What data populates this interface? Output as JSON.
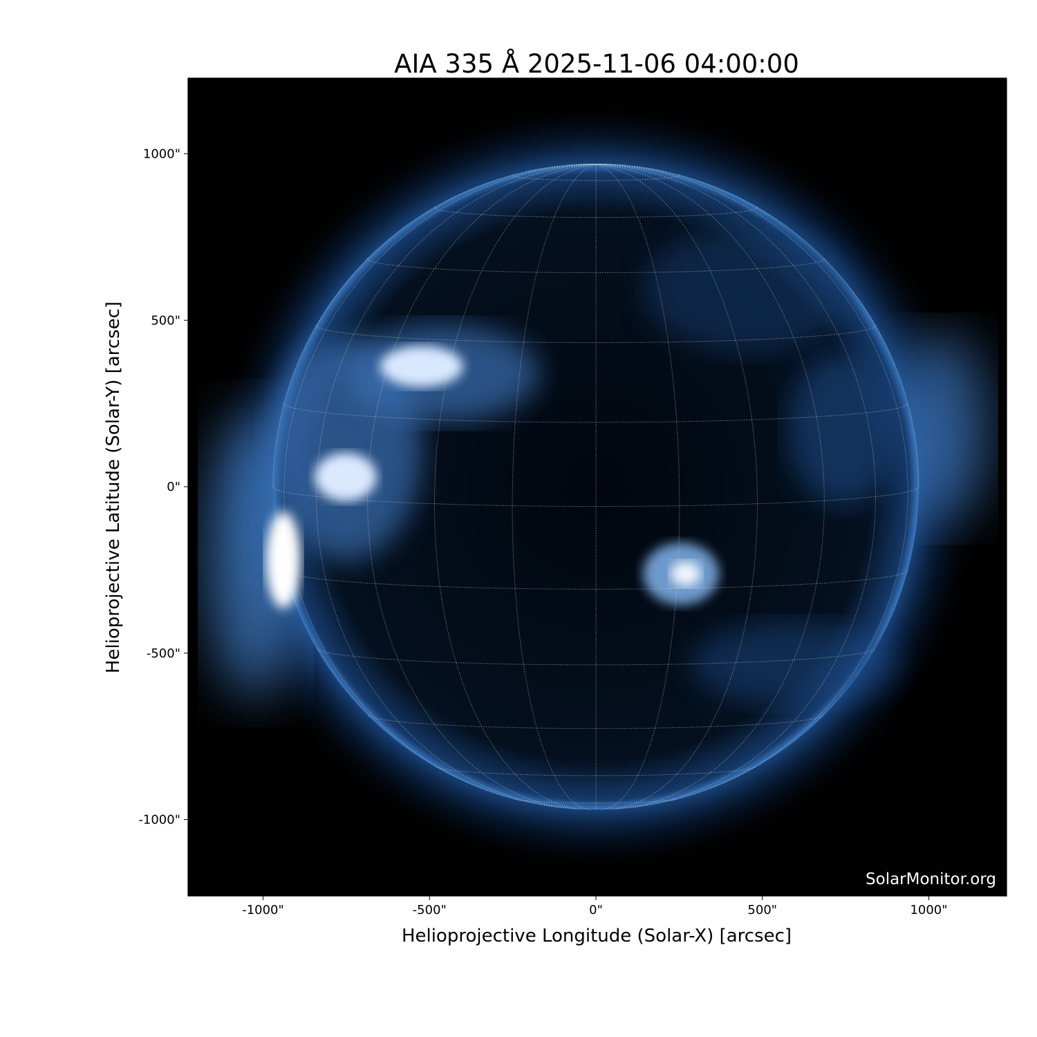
{
  "title": "AIA 335 Å 2025-11-06 04:00:00",
  "watermark": "SolarMonitor.org",
  "axes": {
    "xlabel": "Helioprojective Longitude (Solar-X) [arcsec]",
    "ylabel": "Helioprojective Latitude (Solar-Y) [arcsec]",
    "xlim": [
      -1225,
      1234
    ],
    "ylim": [
      -1229,
      1227
    ],
    "x_ticks": [
      {
        "value": -1000,
        "label": "-1000\""
      },
      {
        "value": -500,
        "label": "-500\""
      },
      {
        "value": 0,
        "label": "0\""
      },
      {
        "value": 500,
        "label": "500\""
      },
      {
        "value": 1000,
        "label": "1000\""
      }
    ],
    "y_ticks": [
      {
        "value": 1000,
        "label": "1000\""
      },
      {
        "value": 500,
        "label": "500\""
      },
      {
        "value": 0,
        "label": "0\""
      },
      {
        "value": -500,
        "label": "-500\""
      },
      {
        "value": -1000,
        "label": "-1000\""
      }
    ]
  },
  "solar_disk": {
    "radius_arcsec": 970,
    "grid_spacing_deg": 15,
    "colormap": "sdoaia335",
    "colors": {
      "background": "#000000",
      "disk_dark": "#020812",
      "mid": "#1d4f8f",
      "bright": "#eef5ff",
      "grid": "#d8d8c8"
    }
  }
}
